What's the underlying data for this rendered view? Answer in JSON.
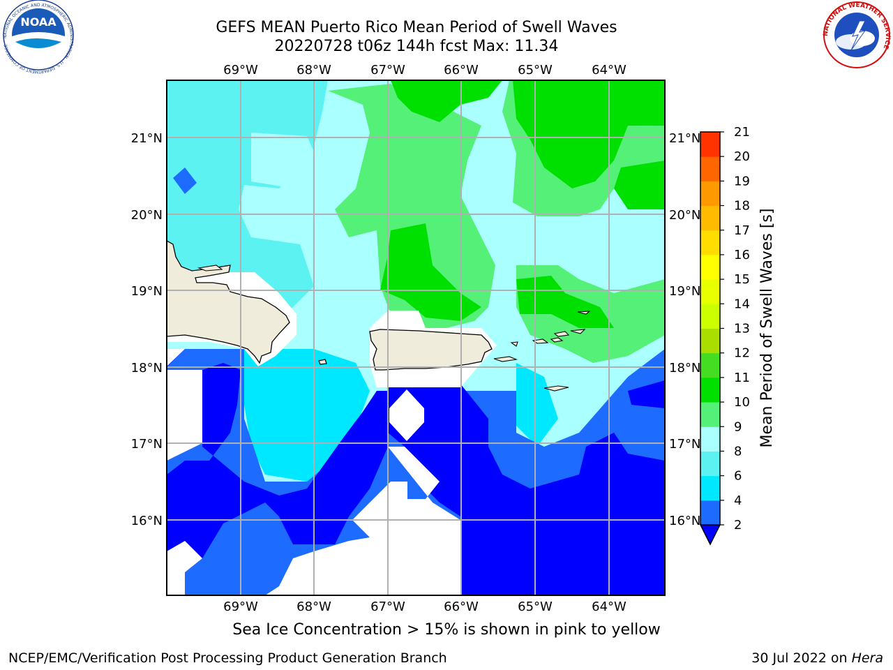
{
  "title_line1": "GEFS MEAN Puerto Rico Mean Period of Swell Waves",
  "title_line2": "20220728 t06z 144h fcst   Max: 11.34",
  "ice_note": "Sea Ice Concentration > 15% is shown in pink to yellow",
  "footer_left": "NCEP/EMC/Verification Post Processing Product Generation Branch",
  "footer_date": "30 Jul 2022 on ",
  "footer_host": "Hera",
  "logos": {
    "noaa_text": "NOAA",
    "noaa_ring": "NATIONAL OCEANIC AND ATMOSPHERIC ADMINISTRATION · U.S. DEPARTMENT OF COMMERCE",
    "nws_ring": "NATIONAL WEATHER SERVICE"
  },
  "map": {
    "lon_labels": [
      "69°W",
      "68°W",
      "67°W",
      "66°W",
      "65°W",
      "64°W"
    ],
    "lat_labels": [
      "21°N",
      "20°N",
      "19°N",
      "18°N",
      "17°N",
      "16°N"
    ],
    "land_color": "#efecdc",
    "grid_color": "#b0b0b0"
  },
  "colorbar": {
    "label": "Mean Period of Swell Waves [s]",
    "levels": [
      2,
      4,
      6,
      8,
      9,
      10,
      11,
      12,
      13,
      14,
      15,
      16,
      17,
      18,
      19,
      20,
      21
    ],
    "colors": [
      "#1e6bff",
      "#00e8ff",
      "#5cf2f2",
      "#aaffff",
      "#55f078",
      "#00e000",
      "#44dd22",
      "#aadd00",
      "#ccff00",
      "#e8ff00",
      "#ffff00",
      "#ffdd00",
      "#ffbb00",
      "#ff9900",
      "#ff6600",
      "#ff3300",
      "#ff0000"
    ],
    "extend_color": "#0000ff"
  }
}
